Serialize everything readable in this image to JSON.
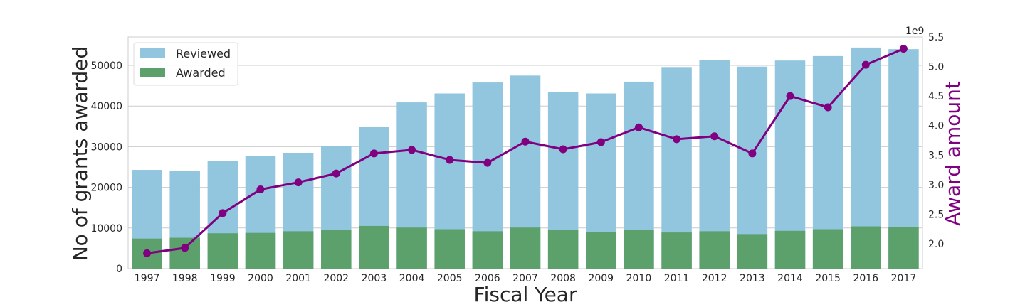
{
  "chart_data": {
    "type": "bar",
    "categories": [
      "1997",
      "1998",
      "1999",
      "2000",
      "2001",
      "2002",
      "2003",
      "2004",
      "2005",
      "2006",
      "2007",
      "2008",
      "2009",
      "2010",
      "2011",
      "2012",
      "2013",
      "2014",
      "2015",
      "2016",
      "2017"
    ],
    "series": [
      {
        "name": "Reviewed",
        "type": "bar",
        "axis": "left",
        "color": "#92c6df",
        "values": [
          24300,
          24100,
          26400,
          27800,
          28500,
          30100,
          34800,
          40900,
          43100,
          45800,
          47500,
          43500,
          43100,
          46000,
          49600,
          51400,
          49700,
          51200,
          52300,
          54400,
          54000
        ]
      },
      {
        "name": "Awarded",
        "type": "bar",
        "axis": "left",
        "color": "#5ca06c",
        "values": [
          7400,
          7600,
          8700,
          8800,
          9200,
          9500,
          10500,
          10100,
          9700,
          9200,
          10100,
          9500,
          9000,
          9500,
          8900,
          9200,
          8500,
          9300,
          9700,
          10400,
          10200
        ]
      },
      {
        "name": "Award amount",
        "type": "line",
        "axis": "right",
        "color": "#800080",
        "values": [
          1840000000.0,
          1930000000.0,
          2520000000.0,
          2920000000.0,
          3040000000.0,
          3190000000.0,
          3530000000.0,
          3590000000.0,
          3420000000.0,
          3370000000.0,
          3730000000.0,
          3600000000.0,
          3720000000.0,
          3970000000.0,
          3770000000.0,
          3820000000.0,
          3530000000.0,
          4500000000.0,
          4310000000.0,
          5030000000.0,
          5300000000.0
        ]
      }
    ],
    "xlabel": "Fiscal Year",
    "ylabel": "No of grants awarded",
    "y2label": "Award amount",
    "y2_offset_label": "1e9",
    "ylim": [
      0,
      57000
    ],
    "y2lim": [
      1580000000.0,
      5500000000.0
    ],
    "yticks": [
      0,
      10000,
      20000,
      30000,
      40000,
      50000
    ],
    "y2ticks": [
      2.0,
      2.5,
      3.0,
      3.5,
      4.0,
      4.5,
      5.0,
      5.5
    ],
    "legend_position": "top-left",
    "grid": true
  }
}
